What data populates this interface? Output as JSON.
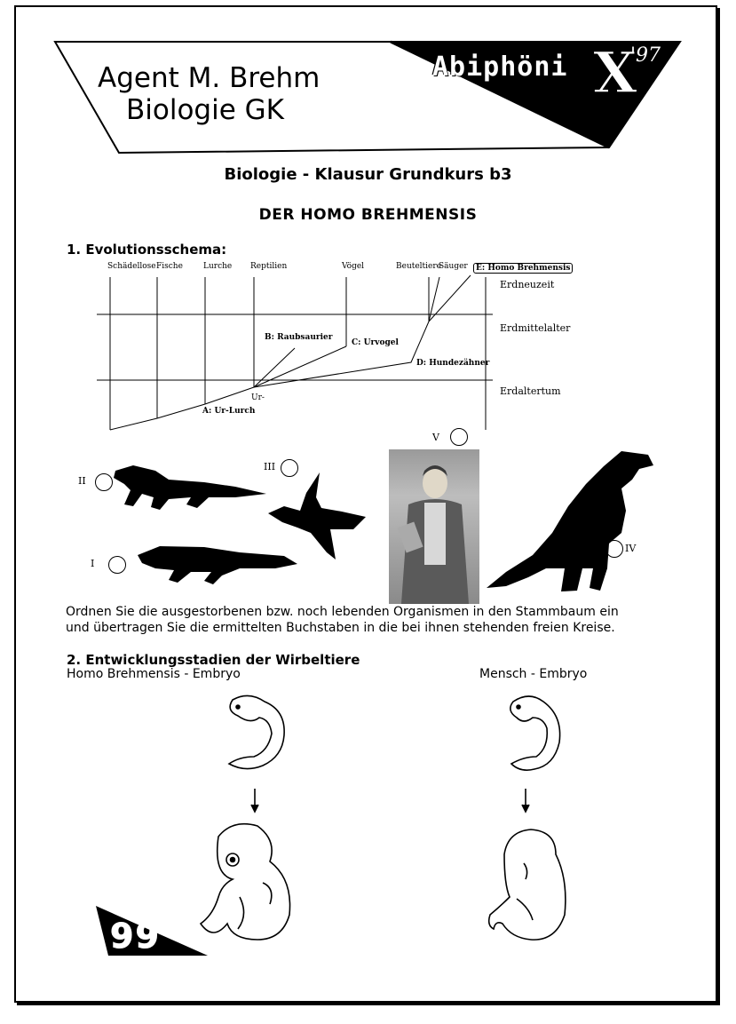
{
  "header": {
    "agent_line1": "Agent M. Brehm",
    "agent_line2": "Biologie GK",
    "logo_text": "Abiphöni",
    "logo_x": "X",
    "logo_year": "'97"
  },
  "title": "Biologie - Klausur Grundkurs b3",
  "subtitle": "DER HOMO BREHMENSIS",
  "section1": {
    "heading": "1. Evolutionsschema:",
    "groups": [
      "Schädellose",
      "Fische",
      "Lurche",
      "Reptilien",
      "Vögel",
      "Beuteltiere",
      "Säuger"
    ],
    "highlight": "E: Homo Brehmensis",
    "eras": [
      "Erdneuzeit",
      "Erdmittelalter",
      "Erdaltertum"
    ],
    "nodes": {
      "a": "A: Ur-Lurch",
      "b": "B: Raubsaurier",
      "c": "C: Urvogel",
      "d": "D: Hundezähner",
      "ur": "Ur-"
    },
    "specimens": [
      "I",
      "II",
      "III",
      "IV",
      "V"
    ],
    "instruction_line1": "Ordnen Sie die ausgestorbenen bzw. noch lebenden Organismen in den Stammbaum ein",
    "instruction_line2": "und übertragen Sie die ermittelten Buchstaben in die bei ihnen stehenden freien Kreise."
  },
  "section2": {
    "heading": "2. Entwicklungsstadien der Wirbeltiere",
    "left_label": "Homo Brehmensis - Embryo",
    "right_label": "Mensch - Embryo"
  },
  "page_number": "99"
}
